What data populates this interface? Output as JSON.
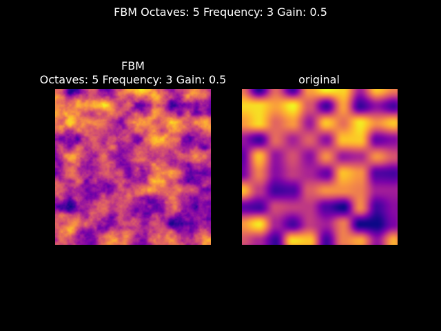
{
  "figure": {
    "suptitle": "FBM Octaves: 5 Frequency: 3 Gain: 0.5",
    "background": "#000000",
    "text_color": "#ffffff"
  },
  "chart_data": [
    {
      "type": "heatmap",
      "title_lines": [
        "FBM",
        "Octaves: 5 Frequency: 3 Gain: 0.5"
      ],
      "colormap": "plasma",
      "noise": "fbm",
      "octaves": 5,
      "frequency": 3,
      "gain": 0.5,
      "axis": "off"
    },
    {
      "type": "heatmap",
      "title_lines": [
        "original"
      ],
      "colormap": "plasma",
      "noise": "smooth",
      "axis": "off"
    }
  ]
}
